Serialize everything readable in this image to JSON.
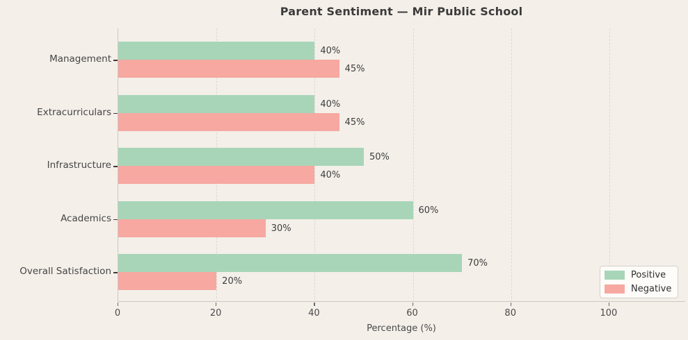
{
  "title": "Parent Sentiment — Mir Public School",
  "chart_data": {
    "type": "bar",
    "orientation": "horizontal",
    "title": "Parent Sentiment — Mir Public School",
    "xlabel": "Percentage (%)",
    "ylabel": "",
    "categories": [
      "Management",
      "Extracurriculars",
      "Infrastructure",
      "Academics",
      "Overall Satisfaction"
    ],
    "series": [
      {
        "name": "Positive",
        "color": "#a8d5b8",
        "values": [
          40,
          40,
          50,
          60,
          70
        ],
        "value_labels": [
          "40%",
          "40%",
          "50%",
          "60%",
          "70%"
        ]
      },
      {
        "name": "Negative",
        "color": "#f6a8a1",
        "values": [
          45,
          45,
          40,
          30,
          20
        ],
        "value_labels": [
          "45%",
          "45%",
          "40%",
          "30%",
          "20%"
        ]
      }
    ],
    "xlim": [
      0,
      115.6
    ],
    "xticks": [
      0,
      20,
      40,
      60,
      80,
      100
    ],
    "grid": "vertical-dashed",
    "legend": {
      "position": "lower right",
      "entries": [
        "Positive",
        "Negative"
      ]
    }
  },
  "colors": {
    "background": "#f4efe9",
    "positive": "#a8d5b8",
    "negative": "#f6a8a1",
    "text": "#454545",
    "grid": "#ddd8d2",
    "spine": "#ccc8c2",
    "legend_background": "#fdfcf9",
    "legend_border": "#d3cfc9"
  }
}
